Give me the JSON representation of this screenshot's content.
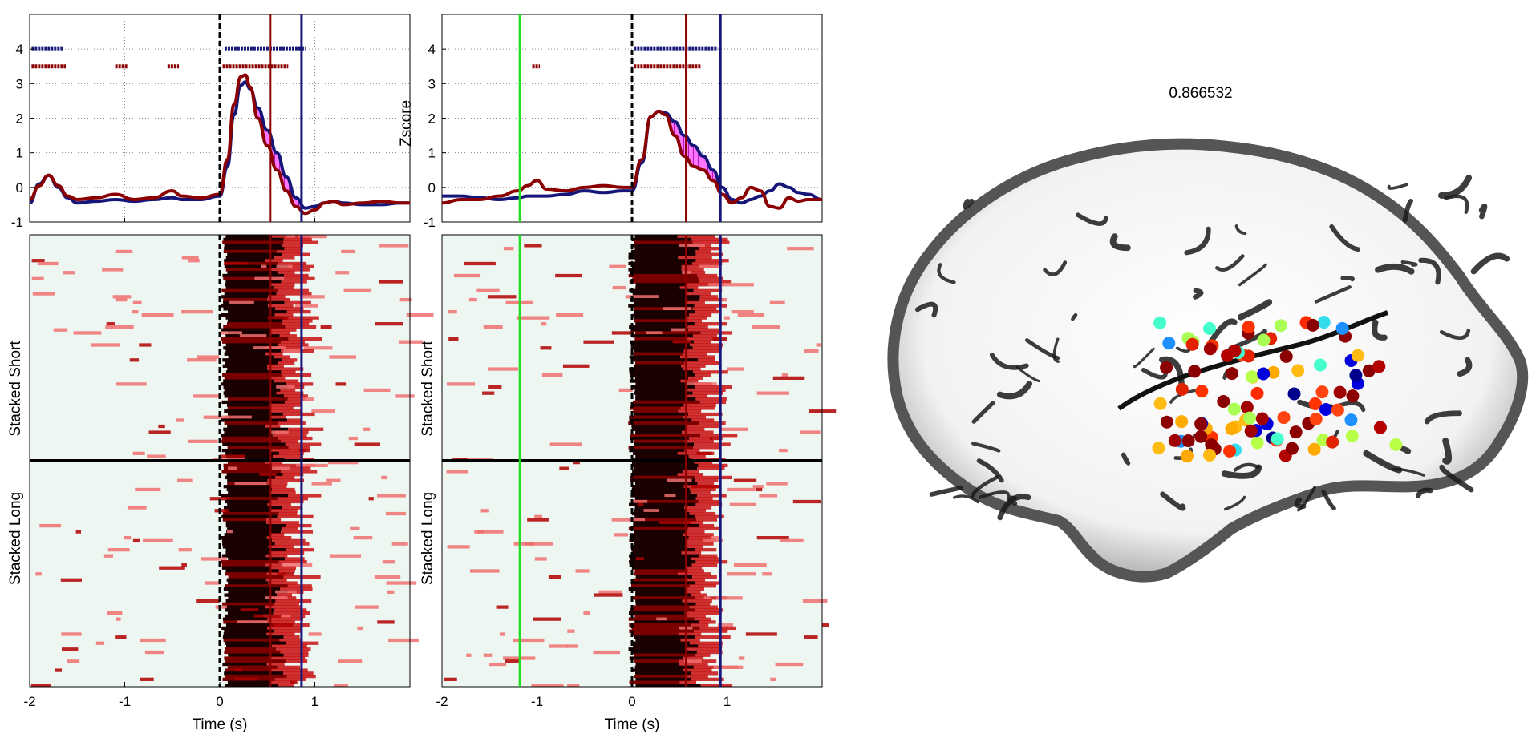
{
  "figure_value": "0.866532",
  "colors": {
    "series_dark_red": "#8b0000",
    "series_navy": "#16167a",
    "event_green": "#22dd22",
    "fill_magenta": "#ff00ff"
  },
  "chart_data": [
    {
      "type": "line",
      "panel": "top-left",
      "xlim": [
        -2,
        2
      ],
      "ylim": [
        -1,
        5
      ],
      "xticks": [
        "-2",
        "-1",
        "0",
        "1"
      ],
      "yticks": [
        "-1",
        "0",
        "1",
        "2",
        "3",
        "4"
      ],
      "ylabel": "",
      "grid": true,
      "event_lines": [
        {
          "x": 0,
          "style": "dashed",
          "color": "#000000"
        },
        {
          "x": 0.53,
          "style": "solid",
          "color": "#8b0000"
        },
        {
          "x": 0.86,
          "style": "solid",
          "color": "#16167a"
        }
      ],
      "series": [
        {
          "color": "#8b0000",
          "x": [
            -2.0,
            -1.9,
            -1.8,
            -1.7,
            -1.6,
            -1.5,
            -1.3,
            -1.1,
            -0.9,
            -0.7,
            -0.5,
            -0.4,
            -0.2,
            0.0,
            0.08,
            0.15,
            0.22,
            0.27,
            0.32,
            0.4,
            0.5,
            0.6,
            0.7,
            0.8,
            0.9,
            1.0,
            1.1,
            1.2,
            1.3,
            1.5,
            1.7,
            1.9,
            2.0
          ],
          "y": [
            -0.35,
            0.05,
            0.35,
            0.05,
            -0.25,
            -0.35,
            -0.3,
            -0.2,
            -0.35,
            -0.3,
            -0.1,
            -0.25,
            -0.3,
            -0.2,
            0.8,
            2.4,
            3.2,
            3.25,
            2.9,
            2.0,
            1.2,
            0.5,
            -0.1,
            -0.55,
            -0.75,
            -0.65,
            -0.45,
            -0.4,
            -0.5,
            -0.45,
            -0.4,
            -0.45,
            -0.45
          ]
        },
        {
          "color": "#16167a",
          "x": [
            -2.0,
            -1.9,
            -1.8,
            -1.7,
            -1.6,
            -1.5,
            -1.3,
            -1.1,
            -0.9,
            -0.7,
            -0.5,
            -0.4,
            -0.2,
            0.0,
            0.08,
            0.15,
            0.22,
            0.27,
            0.32,
            0.4,
            0.5,
            0.6,
            0.7,
            0.8,
            0.9,
            1.0,
            1.1,
            1.2,
            1.3,
            1.5,
            1.7,
            1.9,
            2.0
          ],
          "y": [
            -0.45,
            0.1,
            0.35,
            0.0,
            -0.3,
            -0.45,
            -0.4,
            -0.35,
            -0.4,
            -0.35,
            -0.3,
            -0.35,
            -0.35,
            -0.25,
            0.6,
            2.1,
            2.95,
            3.05,
            2.85,
            2.3,
            1.65,
            1.0,
            0.3,
            -0.3,
            -0.6,
            -0.55,
            -0.45,
            -0.4,
            -0.45,
            -0.5,
            -0.5,
            -0.45,
            -0.45
          ]
        }
      ],
      "significance_rows": [
        {
          "y": 4.0,
          "color": "#16167a",
          "ranges": [
            [
              -1.98,
              -1.65
            ],
            [
              0.05,
              0.9
            ]
          ]
        },
        {
          "y": 3.5,
          "color": "#8b0000",
          "ranges": [
            [
              -1.98,
              -1.62
            ],
            [
              -1.1,
              -0.97
            ],
            [
              -0.55,
              -0.43
            ],
            [
              0.03,
              0.72
            ]
          ]
        }
      ]
    },
    {
      "type": "line",
      "panel": "top-right",
      "xlim": [
        -2,
        2
      ],
      "ylim": [
        -1,
        5
      ],
      "xticks": [
        "-2",
        "-1",
        "0",
        "1"
      ],
      "yticks": [
        "-1",
        "0",
        "1",
        "2",
        "3",
        "4"
      ],
      "ylabel": "Zscore",
      "grid": true,
      "event_lines": [
        {
          "x": -1.18,
          "style": "solid",
          "color": "#22dd22"
        },
        {
          "x": 0,
          "style": "dashed",
          "color": "#000000"
        },
        {
          "x": 0.57,
          "style": "solid",
          "color": "#8b0000"
        },
        {
          "x": 0.93,
          "style": "solid",
          "color": "#16167a"
        }
      ],
      "series": [
        {
          "color": "#8b0000",
          "x": [
            -2.0,
            -1.8,
            -1.6,
            -1.4,
            -1.2,
            -1.1,
            -1.0,
            -0.9,
            -0.7,
            -0.5,
            -0.3,
            -0.1,
            0.0,
            0.1,
            0.2,
            0.28,
            0.35,
            0.45,
            0.55,
            0.65,
            0.75,
            0.85,
            0.95,
            1.05,
            1.15,
            1.25,
            1.35,
            1.45,
            1.55,
            1.65,
            1.75,
            1.85,
            2.0
          ],
          "y": [
            -0.45,
            -0.35,
            -0.35,
            -0.25,
            -0.1,
            0.05,
            0.2,
            -0.05,
            -0.1,
            0.0,
            0.05,
            0.0,
            0.0,
            0.8,
            2.05,
            2.2,
            2.1,
            1.5,
            0.9,
            0.6,
            0.5,
            0.2,
            -0.2,
            -0.45,
            -0.3,
            0.0,
            -0.1,
            -0.55,
            -0.6,
            -0.3,
            -0.4,
            -0.35,
            -0.35
          ]
        },
        {
          "color": "#16167a",
          "x": [
            -2.0,
            -1.8,
            -1.6,
            -1.4,
            -1.2,
            -1.1,
            -1.0,
            -0.9,
            -0.7,
            -0.5,
            -0.3,
            -0.1,
            0.0,
            0.1,
            0.2,
            0.28,
            0.35,
            0.45,
            0.55,
            0.65,
            0.75,
            0.85,
            0.95,
            1.05,
            1.15,
            1.25,
            1.35,
            1.45,
            1.55,
            1.65,
            1.75,
            1.85,
            2.0
          ],
          "y": [
            -0.25,
            -0.25,
            -0.3,
            -0.35,
            -0.3,
            -0.25,
            -0.25,
            -0.25,
            -0.2,
            -0.1,
            -0.15,
            -0.1,
            -0.1,
            0.7,
            2.05,
            2.2,
            2.15,
            1.9,
            1.5,
            1.2,
            0.9,
            0.5,
            0.0,
            -0.35,
            -0.45,
            -0.35,
            -0.25,
            -0.1,
            0.1,
            0.0,
            -0.15,
            -0.2,
            -0.35
          ]
        }
      ],
      "significance_rows": [
        {
          "y": 4.0,
          "color": "#16167a",
          "ranges": [
            [
              0.02,
              0.9
            ]
          ]
        },
        {
          "y": 3.5,
          "color": "#8b0000",
          "ranges": [
            [
              -1.05,
              -0.97
            ],
            [
              0.02,
              0.72
            ]
          ]
        }
      ]
    },
    {
      "type": "heatmap",
      "panel": "bottom-left",
      "xlim": [
        -2,
        2
      ],
      "xticks": [
        "-2",
        "-1",
        "0",
        "1"
      ],
      "xlabel": "Time (s)",
      "ylabels": [
        "Stacked Short",
        "Stacked Long"
      ],
      "split_fraction": 0.5,
      "event_lines": [
        {
          "x": 0,
          "style": "dashed",
          "color": "#000000"
        },
        {
          "x": 0.53,
          "style": "solid",
          "color": "#8b0000"
        },
        {
          "x": 0.86,
          "style": "solid",
          "color": "#16167a"
        }
      ],
      "response_window": [
        0.05,
        0.55
      ]
    },
    {
      "type": "heatmap",
      "panel": "bottom-right",
      "xlim": [
        -2,
        2
      ],
      "xticks": [
        "-2",
        "-1",
        "0",
        "1"
      ],
      "xlabel": "Time (s)",
      "ylabels": [
        "Stacked Short",
        "Stacked Long"
      ],
      "split_fraction": 0.5,
      "event_lines": [
        {
          "x": -1.18,
          "style": "solid",
          "color": "#22dd22"
        },
        {
          "x": 0,
          "style": "dashed",
          "color": "#000000"
        },
        {
          "x": 0.57,
          "style": "solid",
          "color": "#8b0000"
        },
        {
          "x": 0.93,
          "style": "solid",
          "color": "#16167a"
        }
      ],
      "response_window": [
        0.0,
        0.55
      ]
    }
  ],
  "electrodes": [
    {
      "v": 0.95,
      "c": "#8b0000"
    },
    {
      "v": 0.9,
      "c": "#8b0000"
    },
    {
      "v": 0.92,
      "c": "#8b0000"
    },
    {
      "v": 0.88,
      "c": "#a00000"
    },
    {
      "v": 0.85,
      "c": "#b30000"
    },
    {
      "v": 0.8,
      "c": "#e22200"
    },
    {
      "v": 0.78,
      "c": "#ff3300"
    },
    {
      "v": 0.75,
      "c": "#ff4411"
    },
    {
      "v": 0.7,
      "c": "#ff2a00"
    },
    {
      "v": 0.6,
      "c": "#ffaa00"
    },
    {
      "v": 0.55,
      "c": "#ffbb11"
    },
    {
      "v": 0.45,
      "c": "#b8ff48"
    },
    {
      "v": 0.4,
      "c": "#aaff55"
    },
    {
      "v": 0.3,
      "c": "#44ffcc"
    },
    {
      "v": 0.25,
      "c": "#33ddee"
    },
    {
      "v": 0.2,
      "c": "#1e90ff"
    },
    {
      "v": 0.1,
      "c": "#0000dd"
    },
    {
      "v": 0.05,
      "c": "#00008b"
    }
  ]
}
